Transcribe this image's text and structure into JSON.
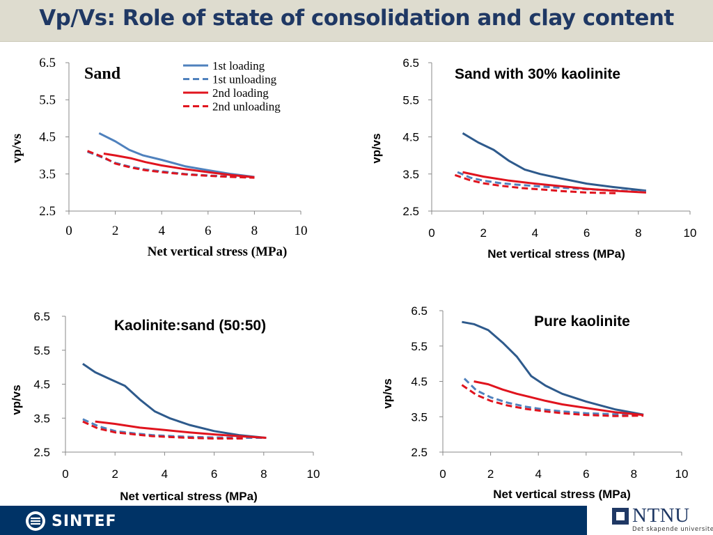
{
  "header": {
    "title": "Vp/Vs: Role of state of consolidation and clay content"
  },
  "footer": {
    "sintef_logo_text": "SINTEF",
    "ntnu_logo_text": "NTNU",
    "ntnu_tagline": "Det skapende universitet"
  },
  "colors": {
    "loading1": "#4f81bd",
    "loading1_dark": "#2e5a8c",
    "loading2": "#e0141e",
    "header_bg": "#dedccf",
    "title": "#1f3864",
    "footer_bg": "#003366"
  },
  "chart_data": [
    {
      "type": "line",
      "title": "Sand",
      "xlabel": "Net vertical stress (MPa)",
      "ylabel": "vp/vs",
      "xlim": [
        0,
        10
      ],
      "ylim": [
        2.5,
        6.5
      ],
      "xticks": [
        "0",
        "2",
        "4",
        "6",
        "8",
        "10"
      ],
      "yticks": [
        "6.5",
        "5.5",
        "4.5",
        "3.5",
        "2.5"
      ],
      "legend": "top-right",
      "series": [
        {
          "name": "1st loading",
          "style": "solid",
          "color": "#4f81bd",
          "x": [
            1.3,
            2.0,
            2.6,
            3.2,
            4.0,
            5.0,
            6.0,
            7.0,
            8.0
          ],
          "y": [
            4.6,
            4.38,
            4.15,
            4.0,
            3.88,
            3.71,
            3.6,
            3.5,
            3.42
          ]
        },
        {
          "name": "1st unloading",
          "style": "dashed",
          "color": "#4f81bd",
          "x": [
            0.8,
            1.3,
            2.0,
            2.6,
            3.3,
            4.0,
            5.0,
            6.0,
            7.0,
            8.0
          ],
          "y": [
            4.1,
            3.98,
            3.8,
            3.7,
            3.62,
            3.57,
            3.5,
            3.46,
            3.43,
            3.41
          ]
        },
        {
          "name": "2nd loading",
          "style": "solid",
          "color": "#e0141e",
          "x": [
            1.5,
            2.0,
            2.7,
            3.3,
            4.0,
            5.0,
            6.0,
            7.0,
            8.0
          ],
          "y": [
            4.05,
            4.0,
            3.92,
            3.82,
            3.73,
            3.63,
            3.55,
            3.47,
            3.41
          ]
        },
        {
          "name": "2nd unloading",
          "style": "dashed",
          "color": "#e0141e",
          "x": [
            0.8,
            1.5,
            2.0,
            2.7,
            3.3,
            4.0,
            5.0,
            6.0,
            7.0,
            8.0
          ],
          "y": [
            4.12,
            3.95,
            3.78,
            3.67,
            3.6,
            3.55,
            3.49,
            3.45,
            3.42,
            3.4
          ]
        }
      ]
    },
    {
      "type": "line",
      "title": "Sand with 30% kaolinite",
      "xlabel": "Net vertical stress (MPa)",
      "ylabel": "vp/vs",
      "xlim": [
        0,
        10
      ],
      "ylim": [
        2.5,
        6.5
      ],
      "xticks": [
        "0",
        "2",
        "4",
        "6",
        "8",
        "10"
      ],
      "yticks": [
        "6.5",
        "5.5",
        "4.5",
        "3.5",
        "2.5"
      ],
      "series": [
        {
          "name": "1st loading",
          "style": "solid",
          "color": "#2e5a8c",
          "x": [
            1.2,
            1.8,
            2.4,
            3.0,
            3.6,
            4.2,
            5.0,
            6.0,
            7.0,
            8.3
          ],
          "y": [
            4.6,
            4.35,
            4.15,
            3.85,
            3.62,
            3.5,
            3.38,
            3.24,
            3.15,
            3.05
          ]
        },
        {
          "name": "1st unloading",
          "style": "dashed",
          "color": "#4f81bd",
          "x": [
            1.0,
            1.5,
            2.0,
            2.7,
            3.5,
            4.3,
            5.0,
            6.0,
            7.0,
            8.3
          ],
          "y": [
            3.55,
            3.4,
            3.32,
            3.25,
            3.2,
            3.16,
            3.13,
            3.09,
            3.06,
            3.02
          ]
        },
        {
          "name": "2nd loading",
          "style": "solid",
          "color": "#e0141e",
          "x": [
            1.2,
            2.0,
            3.0,
            4.0,
            5.0,
            6.0,
            7.0,
            8.3
          ],
          "y": [
            3.55,
            3.43,
            3.32,
            3.24,
            3.17,
            3.1,
            3.05,
            3.0
          ]
        },
        {
          "name": "2nd unloading",
          "style": "dashed",
          "color": "#e0141e",
          "x": [
            0.9,
            1.5,
            2.0,
            2.7,
            3.5,
            4.3,
            5.0,
            6.0,
            7.2
          ],
          "y": [
            3.47,
            3.33,
            3.25,
            3.18,
            3.12,
            3.08,
            3.04,
            3.0,
            2.98
          ]
        }
      ]
    },
    {
      "type": "line",
      "title": "Kaolinite:sand (50:50)",
      "xlabel": "Net vertical stress (MPa)",
      "ylabel": "vp/vs",
      "xlim": [
        0,
        10
      ],
      "ylim": [
        2.5,
        6.5
      ],
      "xticks": [
        "0",
        "2",
        "4",
        "6",
        "8",
        "10"
      ],
      "yticks": [
        "6.5",
        "5.5",
        "4.5",
        "3.5",
        "2.5"
      ],
      "series": [
        {
          "name": "1st loading",
          "style": "solid",
          "color": "#2e5a8c",
          "x": [
            0.7,
            1.2,
            1.8,
            2.4,
            3.0,
            3.6,
            4.2,
            5.0,
            6.0,
            7.0,
            8.1
          ],
          "y": [
            5.1,
            4.85,
            4.65,
            4.45,
            4.05,
            3.7,
            3.5,
            3.3,
            3.12,
            3.0,
            2.92
          ]
        },
        {
          "name": "1st unloading",
          "style": "dashed",
          "color": "#4f81bd",
          "x": [
            0.7,
            1.3,
            2.0,
            2.8,
            3.5,
            4.3,
            5.0,
            6.0,
            7.0,
            8.1
          ],
          "y": [
            3.47,
            3.27,
            3.12,
            3.05,
            3.0,
            2.97,
            2.95,
            2.93,
            2.92,
            2.92
          ]
        },
        {
          "name": "2nd loading",
          "style": "solid",
          "color": "#e0141e",
          "x": [
            1.2,
            2.0,
            3.0,
            4.0,
            5.0,
            6.0,
            7.0,
            8.1
          ],
          "y": [
            3.4,
            3.33,
            3.22,
            3.15,
            3.08,
            3.02,
            2.97,
            2.92
          ]
        },
        {
          "name": "2nd unloading",
          "style": "dashed",
          "color": "#e0141e",
          "x": [
            0.7,
            1.3,
            2.0,
            2.8,
            3.5,
            4.3,
            5.0,
            6.0,
            7.2
          ],
          "y": [
            3.4,
            3.2,
            3.08,
            3.02,
            2.97,
            2.94,
            2.92,
            2.9,
            2.9
          ]
        }
      ]
    },
    {
      "type": "line",
      "title": "Pure kaolinite",
      "xlabel": "Net vertical stress (MPa)",
      "ylabel": "vp/vs",
      "xlim": [
        0,
        10
      ],
      "ylim": [
        2.5,
        6.5
      ],
      "xticks": [
        "0",
        "2",
        "4",
        "6",
        "8",
        "10"
      ],
      "yticks": [
        "6.5",
        "5.5",
        "4.5",
        "3.5",
        "2.5"
      ],
      "series": [
        {
          "name": "1st loading",
          "style": "solid",
          "color": "#2e5a8c",
          "x": [
            0.8,
            1.3,
            1.9,
            2.5,
            3.1,
            3.7,
            4.3,
            5.0,
            6.0,
            7.2,
            8.4
          ],
          "y": [
            6.18,
            6.12,
            5.95,
            5.6,
            5.2,
            4.65,
            4.38,
            4.15,
            3.93,
            3.71,
            3.56
          ]
        },
        {
          "name": "1st unloading",
          "style": "dashed",
          "color": "#4f81bd",
          "x": [
            0.9,
            1.4,
            2.0,
            2.7,
            3.5,
            4.3,
            5.0,
            6.0,
            7.2,
            8.4
          ],
          "y": [
            4.58,
            4.25,
            4.05,
            3.9,
            3.78,
            3.7,
            3.65,
            3.6,
            3.57,
            3.55
          ]
        },
        {
          "name": "2nd loading",
          "style": "solid",
          "color": "#e0141e",
          "x": [
            1.3,
            1.9,
            2.5,
            3.1,
            3.7,
            4.3,
            5.0,
            6.0,
            7.2,
            8.4
          ],
          "y": [
            4.5,
            4.42,
            4.27,
            4.15,
            4.05,
            3.95,
            3.85,
            3.75,
            3.63,
            3.55
          ]
        },
        {
          "name": "2nd unloading",
          "style": "dashed",
          "color": "#e0141e",
          "x": [
            0.8,
            1.4,
            2.0,
            2.7,
            3.5,
            4.3,
            5.0,
            6.0,
            7.2,
            8.4
          ],
          "y": [
            4.4,
            4.12,
            3.95,
            3.82,
            3.72,
            3.65,
            3.6,
            3.55,
            3.52,
            3.53
          ]
        }
      ]
    }
  ]
}
